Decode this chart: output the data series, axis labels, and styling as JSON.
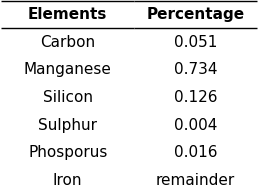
{
  "title_row": [
    "Elements",
    "Percentage"
  ],
  "rows": [
    [
      "Carbon",
      "0.051"
    ],
    [
      "Manganese",
      "0.734"
    ],
    [
      "Silicon",
      "0.126"
    ],
    [
      "Sulphur",
      "0.004"
    ],
    [
      "Phosporus",
      "0.016"
    ],
    [
      "Iron",
      "remainder"
    ]
  ],
  "background_color": "#ffffff",
  "header_fontsize": 11,
  "body_fontsize": 11,
  "figsize": [
    2.58,
    1.95
  ],
  "dpi": 100
}
